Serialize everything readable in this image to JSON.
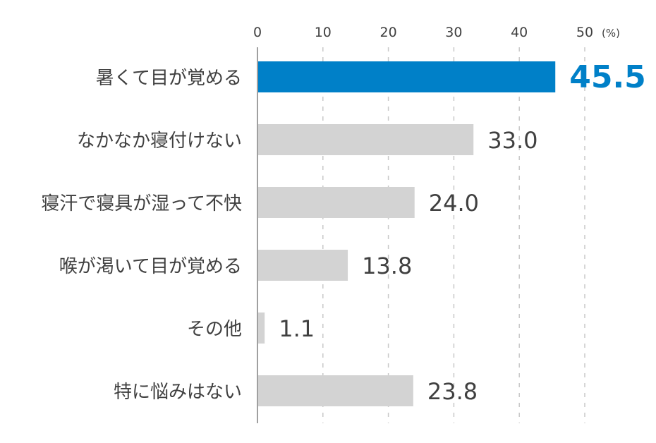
{
  "chart_data": {
    "type": "bar",
    "orientation": "horizontal",
    "categories": [
      "暑くて目が覚める",
      "なかなか寝付けない",
      "寝汗で寝具が湿って不快",
      "喉が渇いて目が覚める",
      "その他",
      "特に悩みはない"
    ],
    "values": [
      45.5,
      33.0,
      24.0,
      13.8,
      1.1,
      23.8
    ],
    "value_labels": [
      "45.5",
      "33.0",
      "24.0",
      "13.8",
      "1.1",
      "23.8"
    ],
    "highlight_index": 0,
    "unit_label": "(%)",
    "xticks": [
      0,
      10,
      20,
      30,
      40,
      50
    ],
    "xlim": [
      0,
      50
    ],
    "grid": "vertical dashed",
    "axis_position": "top",
    "colors": {
      "highlight": "#0080C8",
      "bar": "#D3D3D3",
      "text": "#404040",
      "grid": "#C8C8C8",
      "axis": "#A0A0A0"
    }
  }
}
